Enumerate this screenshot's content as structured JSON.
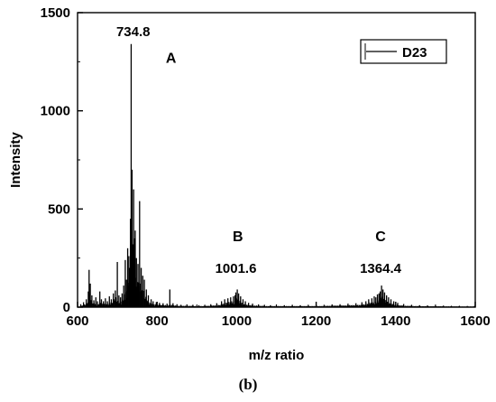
{
  "chart_data": {
    "type": "line",
    "xlabel": "m/z ratio",
    "ylabel": "Intensity",
    "xlim": [
      600,
      1600
    ],
    "ylim": [
      0,
      1500
    ],
    "xticks": [
      600,
      800,
      1000,
      1200,
      1400,
      1600
    ],
    "yticks": [
      0,
      500,
      1000,
      1500
    ],
    "grid": false,
    "legend_position": "top-right",
    "series": [
      {
        "name": "D23",
        "color": "#000000",
        "peaks": [
          [
            608,
            15
          ],
          [
            615,
            25
          ],
          [
            622,
            40
          ],
          [
            627,
            80
          ],
          [
            629,
            190
          ],
          [
            632,
            120
          ],
          [
            636,
            60
          ],
          [
            641,
            35
          ],
          [
            646,
            50
          ],
          [
            650,
            30
          ],
          [
            656,
            80
          ],
          [
            660,
            40
          ],
          [
            665,
            30
          ],
          [
            670,
            45
          ],
          [
            675,
            30
          ],
          [
            680,
            55
          ],
          [
            685,
            40
          ],
          [
            690,
            70
          ],
          [
            695,
            85
          ],
          [
            700,
            230
          ],
          [
            704,
            60
          ],
          [
            708,
            50
          ],
          [
            712,
            70
          ],
          [
            716,
            110
          ],
          [
            720,
            240
          ],
          [
            723,
            140
          ],
          [
            726,
            300
          ],
          [
            729,
            260
          ],
          [
            731,
            200
          ],
          [
            733,
            450
          ],
          [
            734.8,
            1340
          ],
          [
            737,
            700
          ],
          [
            739,
            320
          ],
          [
            741,
            600
          ],
          [
            743,
            350
          ],
          [
            745,
            390
          ],
          [
            748,
            250
          ],
          [
            752,
            220
          ],
          [
            756,
            540
          ],
          [
            760,
            200
          ],
          [
            764,
            160
          ],
          [
            768,
            140
          ],
          [
            773,
            90
          ],
          [
            778,
            60
          ],
          [
            785,
            40
          ],
          [
            790,
            30
          ],
          [
            798,
            25
          ],
          [
            806,
            22
          ],
          [
            815,
            20
          ],
          [
            825,
            18
          ],
          [
            832,
            90
          ],
          [
            840,
            20
          ],
          [
            850,
            15
          ],
          [
            860,
            12
          ],
          [
            875,
            14
          ],
          [
            890,
            12
          ],
          [
            905,
            10
          ],
          [
            920,
            12
          ],
          [
            935,
            15
          ],
          [
            950,
            20
          ],
          [
            962,
            30
          ],
          [
            970,
            40
          ],
          [
            978,
            45
          ],
          [
            985,
            50
          ],
          [
            992,
            55
          ],
          [
            996,
            60
          ],
          [
            998,
            75
          ],
          [
            1001.6,
            90
          ],
          [
            1005,
            70
          ],
          [
            1010,
            55
          ],
          [
            1016,
            40
          ],
          [
            1022,
            30
          ],
          [
            1030,
            22
          ],
          [
            1040,
            18
          ],
          [
            1055,
            14
          ],
          [
            1070,
            12
          ],
          [
            1085,
            10
          ],
          [
            1100,
            12
          ],
          [
            1120,
            10
          ],
          [
            1140,
            12
          ],
          [
            1160,
            10
          ],
          [
            1180,
            12
          ],
          [
            1200,
            10
          ],
          [
            1220,
            12
          ],
          [
            1240,
            14
          ],
          [
            1260,
            15
          ],
          [
            1280,
            18
          ],
          [
            1300,
            20
          ],
          [
            1315,
            25
          ],
          [
            1325,
            30
          ],
          [
            1332,
            40
          ],
          [
            1340,
            45
          ],
          [
            1346,
            55
          ],
          [
            1350,
            50
          ],
          [
            1354,
            65
          ],
          [
            1358,
            70
          ],
          [
            1361,
            80
          ],
          [
            1364.4,
            110
          ],
          [
            1368,
            90
          ],
          [
            1372,
            75
          ],
          [
            1377,
            60
          ],
          [
            1382,
            50
          ],
          [
            1388,
            40
          ],
          [
            1395,
            30
          ],
          [
            1405,
            22
          ],
          [
            1420,
            16
          ],
          [
            1440,
            12
          ],
          [
            1460,
            10
          ],
          [
            1480,
            9
          ],
          [
            1500,
            8
          ],
          [
            1520,
            8
          ],
          [
            1540,
            7
          ],
          [
            1560,
            7
          ],
          [
            1580,
            6
          ],
          [
            1598,
            6
          ]
        ]
      }
    ],
    "annotations": [
      {
        "text": "734.8",
        "x": 740,
        "y": 1380
      },
      {
        "text": "A",
        "x": 835,
        "y": 1245
      },
      {
        "text": "B",
        "x": 1003,
        "y": 335
      },
      {
        "text": "1001.6",
        "x": 998,
        "y": 175
      },
      {
        "text": "C",
        "x": 1362,
        "y": 335
      },
      {
        "text": "1364.4",
        "x": 1362,
        "y": 175
      }
    ]
  },
  "panel_label": "(b)"
}
